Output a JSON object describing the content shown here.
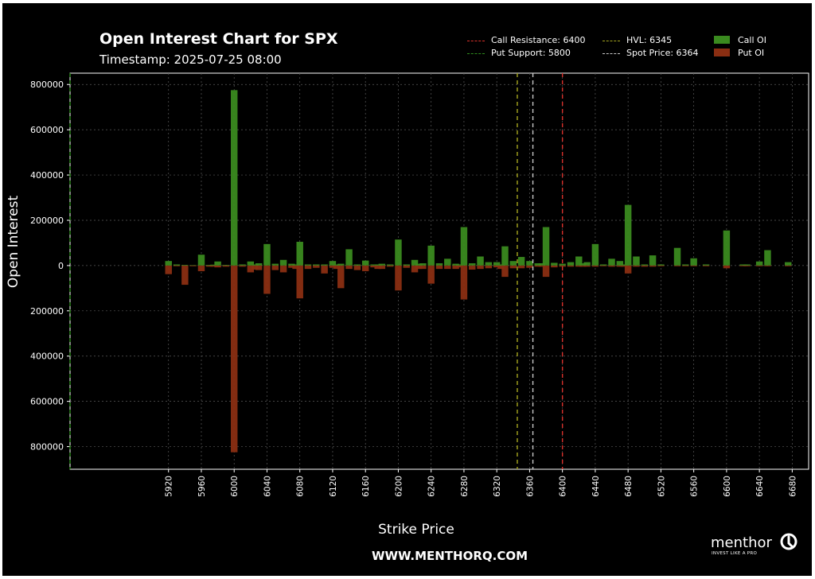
{
  "colors": {
    "background": "#000000",
    "call_bar": "#3a8a1f",
    "put_bar": "#8a2e12",
    "call_resistance": "#d9312b",
    "put_support": "#2e8c1c",
    "hvl": "#a6a61f",
    "spot": "#c8c8c8",
    "grid": "#5a5a5a"
  },
  "header": {
    "title": "Open Interest Chart for SPX",
    "subtitle": "Timestamp: 2025-07-25 08:00"
  },
  "footer": {
    "website": "WWW.MENTHORQ.COM",
    "logo_text": "menthor",
    "logo_tagline": "INVEST LIKE A PRO"
  },
  "legend": {
    "call_resistance": "Call Resistance: 6400",
    "put_support": "Put Support: 5800",
    "hvl": "HVL: 6345",
    "spot": "Spot Price: 6364",
    "call_oi": "Call OI",
    "put_oi": "Put OI"
  },
  "chart_data": {
    "type": "bar",
    "title": "Open Interest Chart for SPX",
    "subtitle": "Timestamp: 2025-07-25 08:00",
    "xlabel": "Strike Price",
    "ylabel": "Open Interest",
    "xlim": [
      5800,
      6700
    ],
    "ylim": [
      -900000,
      850000
    ],
    "x_ticks": [
      5920,
      5960,
      6000,
      6040,
      6080,
      6120,
      6160,
      6200,
      6240,
      6280,
      6320,
      6360,
      6400,
      6440,
      6480,
      6520,
      6560,
      6600,
      6640,
      6680
    ],
    "x_tick_labels": [
      "5920",
      "5960",
      "6000",
      "6040",
      "6080",
      "6120",
      "6160",
      "6200",
      "6240",
      "6280",
      "6320",
      "6360",
      "6400",
      "6440",
      "6480",
      "6520",
      "6560",
      "6600",
      "6640",
      "6680"
    ],
    "y_ticks": [
      -800000,
      -600000,
      -400000,
      -200000,
      0,
      200000,
      400000,
      600000,
      800000
    ],
    "y_tick_labels": [
      "800000",
      "600000",
      "400000",
      "200000",
      "0",
      "200000",
      "400000",
      "600000",
      "800000"
    ],
    "grid": true,
    "legend_position": "top-right",
    "strikes": [
      5920,
      5930,
      5940,
      5950,
      5960,
      5970,
      5975,
      5980,
      5990,
      6000,
      6010,
      6020,
      6025,
      6030,
      6040,
      6050,
      6060,
      6070,
      6075,
      6080,
      6090,
      6100,
      6110,
      6120,
      6125,
      6130,
      6140,
      6150,
      6160,
      6170,
      6175,
      6180,
      6190,
      6200,
      6210,
      6220,
      6225,
      6230,
      6240,
      6250,
      6260,
      6270,
      6275,
      6280,
      6290,
      6300,
      6310,
      6320,
      6325,
      6330,
      6340,
      6350,
      6360,
      6370,
      6375,
      6380,
      6390,
      6400,
      6410,
      6420,
      6425,
      6430,
      6440,
      6450,
      6460,
      6470,
      6475,
      6480,
      6490,
      6500,
      6510,
      6520,
      6540,
      6550,
      6560,
      6575,
      6600,
      6620,
      6625,
      6640,
      6650,
      6675
    ],
    "series": [
      {
        "name": "Call OI",
        "values": [
          20000,
          5000,
          3000,
          2000,
          48000,
          3000,
          4000,
          18000,
          3000,
          775000,
          5000,
          18000,
          5000,
          10000,
          95000,
          8000,
          25000,
          8000,
          5000,
          105000,
          5000,
          5000,
          5000,
          20000,
          5000,
          8000,
          72000,
          5000,
          22000,
          5000,
          5000,
          8000,
          5000,
          115000,
          5000,
          25000,
          8000,
          10000,
          88000,
          10000,
          30000,
          8000,
          5000,
          170000,
          10000,
          40000,
          15000,
          15000,
          5000,
          85000,
          20000,
          38000,
          20000,
          10000,
          10000,
          170000,
          12000,
          8000,
          15000,
          40000,
          10000,
          15000,
          95000,
          5000,
          30000,
          20000,
          5000,
          268000,
          40000,
          5000,
          45000,
          5000,
          78000,
          5000,
          32000,
          5000,
          155000,
          5000,
          5000,
          18000,
          68000,
          15000
        ]
      },
      {
        "name": "Put OI",
        "values": [
          -38000,
          -3000,
          -85000,
          -3000,
          -25000,
          -5000,
          -5000,
          -8000,
          -5000,
          -825000,
          -5000,
          -30000,
          -18000,
          -20000,
          -125000,
          -20000,
          -30000,
          -10000,
          -15000,
          -145000,
          -15000,
          -10000,
          -35000,
          -10000,
          -15000,
          -100000,
          -15000,
          -20000,
          -25000,
          -8000,
          -15000,
          -15000,
          -5000,
          -110000,
          -10000,
          -30000,
          -15000,
          -15000,
          -80000,
          -15000,
          -15000,
          -15000,
          -8000,
          -150000,
          -18000,
          -15000,
          -12000,
          -8000,
          -15000,
          -50000,
          -12000,
          -12000,
          -10000,
          -5000,
          -5000,
          -50000,
          -8000,
          -5000,
          -5000,
          -5000,
          -5000,
          -5000,
          -5000,
          -3000,
          -5000,
          -5000,
          -5000,
          -35000,
          -5000,
          -5000,
          -5000,
          -3000,
          -3000,
          -3000,
          -3000,
          -3000,
          -12000,
          -3000,
          -3000,
          -3000,
          -3000,
          -3000
        ]
      }
    ],
    "levels": [
      {
        "name": "Call Resistance",
        "x": 6400
      },
      {
        "name": "Put Support",
        "x": 5800
      },
      {
        "name": "HVL",
        "x": 6345
      },
      {
        "name": "Spot Price",
        "x": 6364
      }
    ]
  }
}
